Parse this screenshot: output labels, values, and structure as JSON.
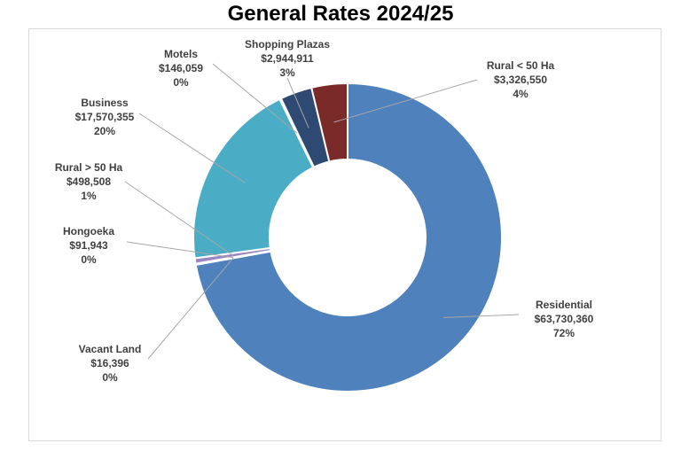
{
  "chart_data": {
    "type": "pie",
    "variant": "doughnut",
    "title": "General Rates 2024/25",
    "slices": [
      {
        "key": "residential",
        "label": "Residential",
        "value": 63730360,
        "value_text": "$63,730,360",
        "percent_text": "72%",
        "color": "#4f81bd"
      },
      {
        "key": "vacant",
        "label": "Vacant Land",
        "value": 16396,
        "value_text": "$16,396",
        "percent_text": "0%",
        "color": "#c0504d"
      },
      {
        "key": "hongoeka",
        "label": "Hongoeka",
        "value": 91943,
        "value_text": "$91,943",
        "percent_text": "0%",
        "color": "#7a5fa6"
      },
      {
        "key": "rural_gt",
        "label": "Rural > 50 Ha",
        "value": 498508,
        "value_text": "$498,508",
        "percent_text": "1%",
        "color": "#9a86c2"
      },
      {
        "key": "business",
        "label": "Business",
        "value": 17570355,
        "value_text": "$17,570,355",
        "percent_text": "20%",
        "color": "#4bacc6"
      },
      {
        "key": "motels",
        "label": "Motels",
        "value": 146059,
        "value_text": "$146,059",
        "percent_text": "0%",
        "color": "#a5c8e0"
      },
      {
        "key": "shopping",
        "label": "Shopping Plazas",
        "value": 2944911,
        "value_text": "$2,944,911",
        "percent_text": "3%",
        "color": "#2e4a72"
      },
      {
        "key": "rural_lt",
        "label": "Rural < 50 Ha",
        "value": 3326550,
        "value_text": "$3,326,550",
        "percent_text": "4%",
        "color": "#7b2a2a"
      }
    ]
  }
}
